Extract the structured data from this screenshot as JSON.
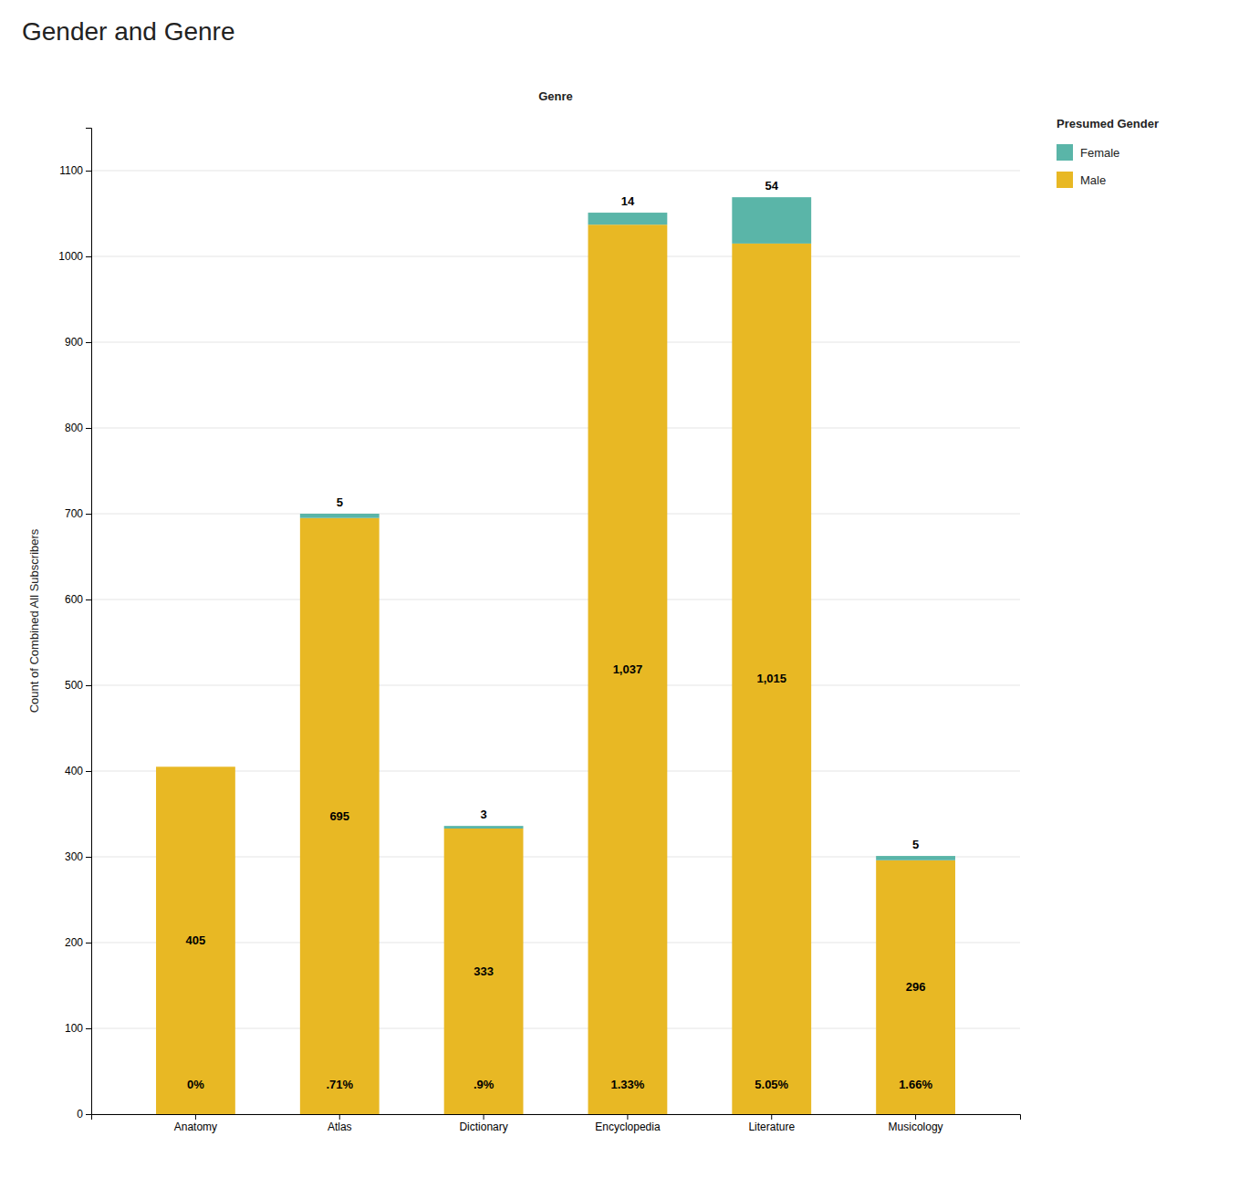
{
  "chart_data": {
    "type": "bar",
    "stacked": true,
    "title": "Gender and Genre",
    "xlabel": "Genre",
    "ylabel": "Count of Combined All Subscribers",
    "categories": [
      "Anatomy",
      "Atlas",
      "Dictionary",
      "Encyclopedia",
      "Literature",
      "Musicology"
    ],
    "series": [
      {
        "name": "Male",
        "color": "#e8b824",
        "values": [
          405,
          695,
          333,
          1037,
          1015,
          296
        ],
        "value_labels": [
          "405",
          "695",
          "333",
          "1,037",
          "1,015",
          "296"
        ]
      },
      {
        "name": "Female",
        "color": "#5ab5a8",
        "values": [
          0,
          5,
          3,
          14,
          54,
          5
        ],
        "value_labels": [
          null,
          "5",
          "3",
          "14",
          "54",
          "5"
        ]
      }
    ],
    "annotations": [
      "0%",
      ".71%",
      ".9%",
      "1.33%",
      "5.05%",
      "1.66%"
    ],
    "legend_title": "Presumed Gender",
    "legend": "upper right",
    "data_labels": true,
    "grid": true,
    "ylim": [
      0,
      1150
    ],
    "yticks": [
      0,
      100,
      200,
      300,
      400,
      500,
      600,
      700,
      800,
      900,
      1000,
      1100
    ]
  }
}
